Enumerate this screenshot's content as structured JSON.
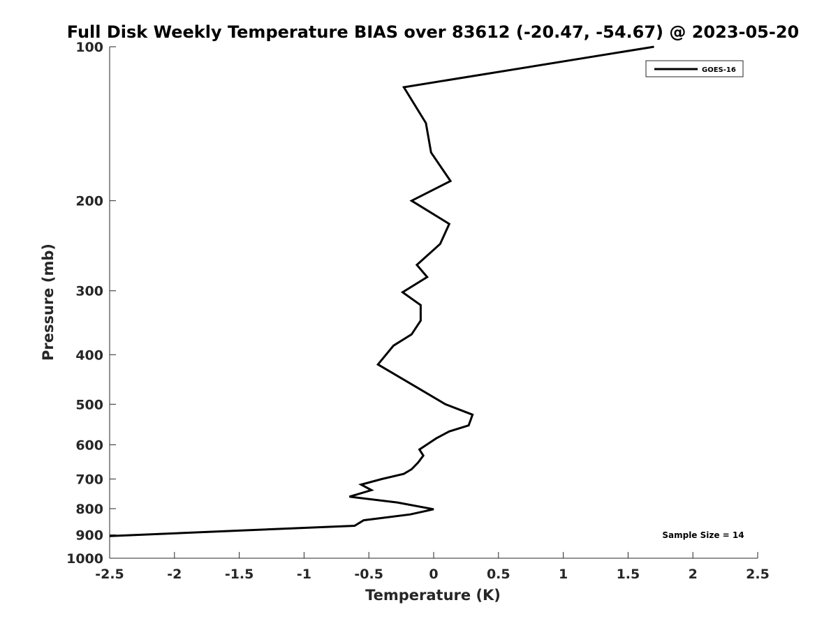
{
  "chart_data": {
    "type": "line",
    "title": "Full Disk Weekly Temperature BIAS over 83612 (-20.47, -54.67) @ 2023-05-20",
    "xlabel": "Temperature (K)",
    "ylabel": "Pressure (mb)",
    "xlim": [
      -2.5,
      2.5
    ],
    "ylim": [
      100,
      1000
    ],
    "y_scale": "log",
    "y_reversed": true,
    "x_ticks": [
      {
        "value": -2.5,
        "label": "-2.5"
      },
      {
        "value": -2,
        "label": "-2"
      },
      {
        "value": -1.5,
        "label": "-1.5"
      },
      {
        "value": -1,
        "label": "-1"
      },
      {
        "value": -0.5,
        "label": "-0.5"
      },
      {
        "value": 0,
        "label": "0"
      },
      {
        "value": 0.5,
        "label": "0.5"
      },
      {
        "value": 1,
        "label": "1"
      },
      {
        "value": 1.5,
        "label": "1.5"
      },
      {
        "value": 2,
        "label": "2"
      },
      {
        "value": 2.5,
        "label": "2.5"
      }
    ],
    "y_ticks": [
      {
        "value": 100,
        "label": "100"
      },
      {
        "value": 200,
        "label": "200"
      },
      {
        "value": 300,
        "label": "300"
      },
      {
        "value": 400,
        "label": "400"
      },
      {
        "value": 500,
        "label": "500"
      },
      {
        "value": 600,
        "label": "600"
      },
      {
        "value": 700,
        "label": "700"
      },
      {
        "value": 800,
        "label": "800"
      },
      {
        "value": 900,
        "label": "900"
      },
      {
        "value": 1000,
        "label": "1000"
      }
    ],
    "grid": false,
    "legend_position": "top-right",
    "series": [
      {
        "name": "GOES-16",
        "color": "#000000",
        "points": [
          {
            "x": 1.7,
            "p": 100
          },
          {
            "x": -0.23,
            "p": 120
          },
          {
            "x": -0.06,
            "p": 141
          },
          {
            "x": -0.02,
            "p": 161
          },
          {
            "x": 0.13,
            "p": 183
          },
          {
            "x": -0.17,
            "p": 200
          },
          {
            "x": 0.12,
            "p": 222
          },
          {
            "x": 0.05,
            "p": 243
          },
          {
            "x": -0.13,
            "p": 267
          },
          {
            "x": -0.05,
            "p": 282
          },
          {
            "x": -0.24,
            "p": 302
          },
          {
            "x": -0.1,
            "p": 320
          },
          {
            "x": -0.1,
            "p": 343
          },
          {
            "x": -0.17,
            "p": 365
          },
          {
            "x": -0.31,
            "p": 384
          },
          {
            "x": -0.43,
            "p": 418
          },
          {
            "x": -0.32,
            "p": 434
          },
          {
            "x": -0.12,
            "p": 465
          },
          {
            "x": 0.09,
            "p": 500
          },
          {
            "x": 0.3,
            "p": 524
          },
          {
            "x": 0.27,
            "p": 550
          },
          {
            "x": 0.12,
            "p": 565
          },
          {
            "x": 0.02,
            "p": 583
          },
          {
            "x": -0.11,
            "p": 613
          },
          {
            "x": -0.08,
            "p": 630
          },
          {
            "x": -0.12,
            "p": 650
          },
          {
            "x": -0.17,
            "p": 670
          },
          {
            "x": -0.23,
            "p": 684
          },
          {
            "x": -0.4,
            "p": 700
          },
          {
            "x": -0.56,
            "p": 718
          },
          {
            "x": -0.48,
            "p": 736
          },
          {
            "x": -0.65,
            "p": 758
          },
          {
            "x": -0.28,
            "p": 778
          },
          {
            "x": 0.0,
            "p": 802
          },
          {
            "x": -0.18,
            "p": 821
          },
          {
            "x": -0.54,
            "p": 843
          },
          {
            "x": -0.61,
            "p": 864
          },
          {
            "x": -1.5,
            "p": 883
          },
          {
            "x": -2.5,
            "p": 905
          }
        ]
      }
    ],
    "annotations": [
      {
        "text": "Sample Size = 14",
        "position": "bottom-right"
      }
    ]
  }
}
